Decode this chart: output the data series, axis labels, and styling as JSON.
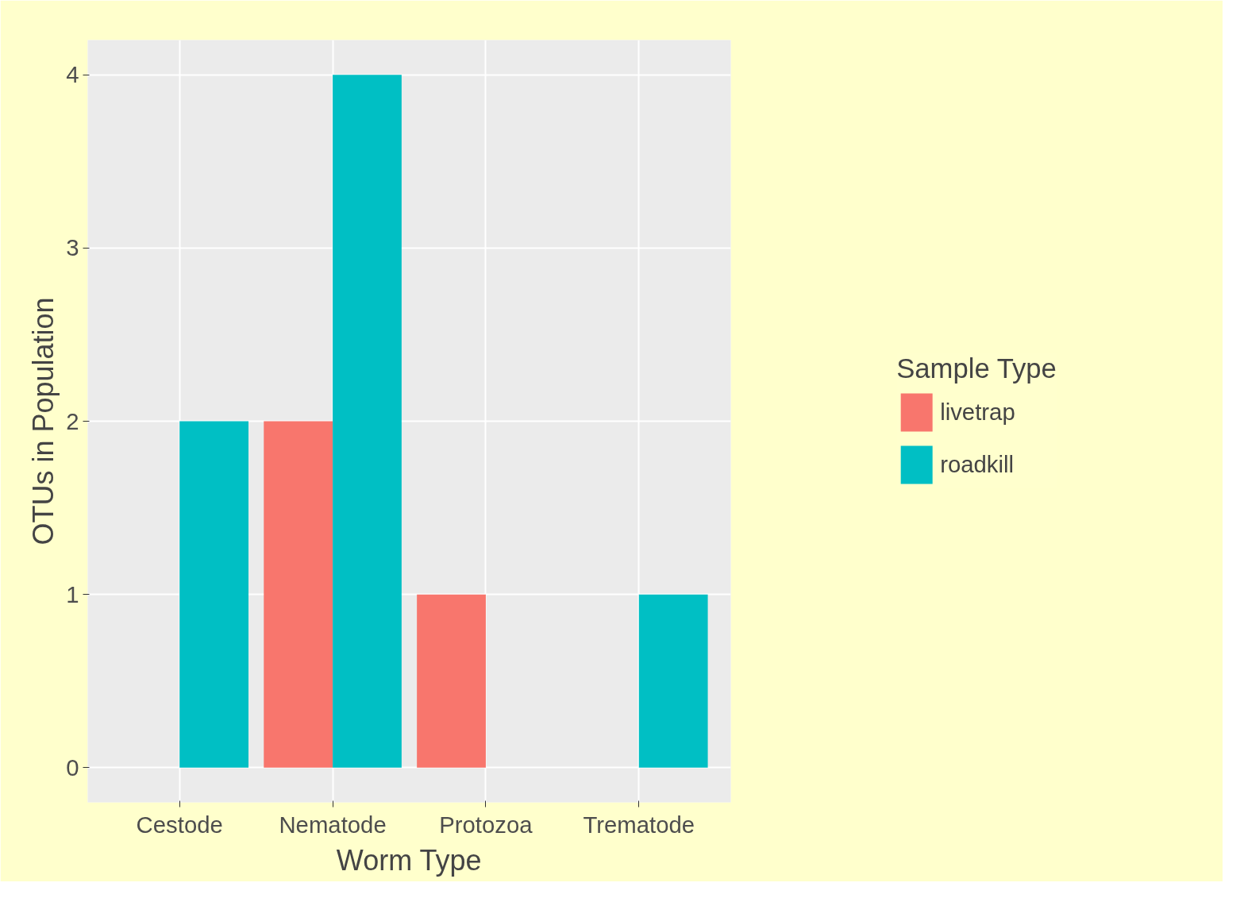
{
  "chart_data": {
    "type": "bar",
    "xlabel": "Worm Type",
    "ylabel": "OTUs in Population",
    "legend_title": "Sample Type",
    "categories": [
      "Cestode",
      "Nematode",
      "Protozoa",
      "Trematode"
    ],
    "series": [
      {
        "name": "livetrap",
        "color": "#f8766d",
        "values": [
          null,
          2,
          1,
          null
        ]
      },
      {
        "name": "roadkill",
        "color": "#00bfc4",
        "values": [
          2,
          4,
          null,
          1
        ]
      }
    ],
    "ylim": [
      -0.2,
      4.2
    ],
    "yticks": [
      0,
      1,
      2,
      3,
      4
    ],
    "grid": true,
    "legend": "right"
  }
}
